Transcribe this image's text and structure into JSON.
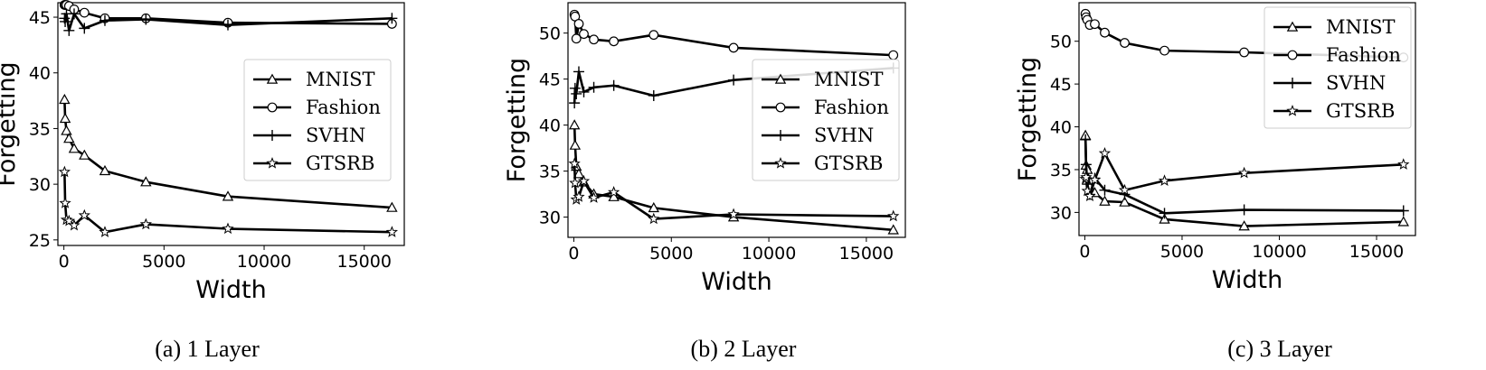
{
  "chart_data": [
    {
      "type": "line",
      "caption": "(a) 1 Layer",
      "xlabel": "Width",
      "ylabel": "Forgetting",
      "xlim": [
        -300,
        17000
      ],
      "ylim": [
        24.5,
        46.3
      ],
      "xticks": [
        0,
        5000,
        10000,
        15000
      ],
      "yticks": [
        25,
        30,
        35,
        40,
        45
      ],
      "legend_placement": "center-right",
      "series": [
        {
          "name": "MNIST",
          "marker": "triangle",
          "points": [
            [
              32,
              37.6
            ],
            [
              64,
              35.9
            ],
            [
              128,
              34.8
            ],
            [
              256,
              34.1
            ],
            [
              512,
              33.2
            ],
            [
              1024,
              32.6
            ],
            [
              2048,
              31.2
            ],
            [
              4096,
              30.2
            ],
            [
              8192,
              28.9
            ],
            [
              16384,
              27.9
            ]
          ]
        },
        {
          "name": "Fashion",
          "marker": "circle",
          "points": [
            [
              32,
              46.1
            ],
            [
              64,
              46.1
            ],
            [
              128,
              46.1
            ],
            [
              256,
              46.0
            ],
            [
              512,
              45.7
            ],
            [
              1024,
              45.4
            ],
            [
              2048,
              44.9
            ],
            [
              4096,
              44.9
            ],
            [
              8192,
              44.5
            ],
            [
              16384,
              44.4
            ]
          ]
        },
        {
          "name": "SVHN",
          "marker": "plus",
          "points": [
            [
              32,
              44.9
            ],
            [
              64,
              44.6
            ],
            [
              128,
              45.3
            ],
            [
              256,
              43.8
            ],
            [
              512,
              45.3
            ],
            [
              1024,
              44.0
            ],
            [
              2048,
              44.7
            ],
            [
              4096,
              44.8
            ],
            [
              8192,
              44.3
            ],
            [
              16384,
              44.9
            ]
          ]
        },
        {
          "name": "GTSRB",
          "marker": "star",
          "points": [
            [
              32,
              31.1
            ],
            [
              64,
              28.3
            ],
            [
              128,
              26.8
            ],
            [
              256,
              26.7
            ],
            [
              512,
              26.3
            ],
            [
              1024,
              27.2
            ],
            [
              2048,
              25.7
            ],
            [
              4096,
              26.4
            ],
            [
              8192,
              26.0
            ],
            [
              16384,
              25.7
            ]
          ]
        }
      ]
    },
    {
      "type": "line",
      "caption": "(b) 2 Layer",
      "xlabel": "Width",
      "ylabel": "Forgetting",
      "xlim": [
        -300,
        17000
      ],
      "ylim": [
        27.8,
        53.3
      ],
      "xticks": [
        0,
        5000,
        10000,
        15000
      ],
      "yticks": [
        30,
        35,
        40,
        45,
        50
      ],
      "legend_placement": "center-right",
      "series": [
        {
          "name": "MNIST",
          "marker": "triangle",
          "points": [
            [
              32,
              40.0
            ],
            [
              64,
              37.8
            ],
            [
              128,
              35.5
            ],
            [
              256,
              34.7
            ],
            [
              512,
              33.8
            ],
            [
              1024,
              32.5
            ],
            [
              2048,
              32.2
            ],
            [
              4096,
              31.0
            ],
            [
              8192,
              30.0
            ],
            [
              16384,
              28.6
            ]
          ]
        },
        {
          "name": "Fashion",
          "marker": "circle",
          "points": [
            [
              32,
              52.0
            ],
            [
              64,
              51.8
            ],
            [
              128,
              49.4
            ],
            [
              256,
              51.0
            ],
            [
              512,
              49.9
            ],
            [
              1024,
              49.3
            ],
            [
              2048,
              49.1
            ],
            [
              4096,
              49.8
            ],
            [
              8192,
              48.4
            ],
            [
              16384,
              47.6
            ]
          ]
        },
        {
          "name": "SVHN",
          "marker": "plus",
          "points": [
            [
              32,
              42.4
            ],
            [
              64,
              44.0
            ],
            [
              128,
              43.4
            ],
            [
              256,
              45.8
            ],
            [
              512,
              43.6
            ],
            [
              1024,
              44.1
            ],
            [
              2048,
              44.3
            ],
            [
              4096,
              43.2
            ],
            [
              8192,
              44.9
            ],
            [
              16384,
              46.2
            ]
          ]
        },
        {
          "name": "GTSRB",
          "marker": "star",
          "points": [
            [
              32,
              35.8
            ],
            [
              64,
              33.7
            ],
            [
              128,
              31.9
            ],
            [
              256,
              32.2
            ],
            [
              512,
              33.9
            ],
            [
              1024,
              32.1
            ],
            [
              2048,
              32.7
            ],
            [
              4096,
              29.8
            ],
            [
              8192,
              30.3
            ],
            [
              16384,
              30.1
            ]
          ]
        }
      ]
    },
    {
      "type": "line",
      "caption": "(c) 3 Layer",
      "xlabel": "Width",
      "ylabel": "Forgetting",
      "xlim": [
        -300,
        17000
      ],
      "ylim": [
        27.3,
        54.5
      ],
      "xticks": [
        0,
        5000,
        10000,
        15000
      ],
      "yticks": [
        30,
        35,
        40,
        45,
        50
      ],
      "legend_placement": "top-right",
      "series": [
        {
          "name": "MNIST",
          "marker": "triangle",
          "points": [
            [
              32,
              39.0
            ],
            [
              64,
              35.5
            ],
            [
              128,
              35.0
            ],
            [
              256,
              33.0
            ],
            [
              512,
              32.3
            ],
            [
              1024,
              31.3
            ],
            [
              2048,
              31.2
            ],
            [
              4096,
              29.2
            ],
            [
              8192,
              28.4
            ],
            [
              16384,
              28.9
            ]
          ]
        },
        {
          "name": "Fashion",
          "marker": "circle",
          "points": [
            [
              32,
              53.2
            ],
            [
              64,
              52.8
            ],
            [
              128,
              52.5
            ],
            [
              256,
              51.9
            ],
            [
              512,
              52.0
            ],
            [
              1024,
              51.0
            ],
            [
              2048,
              49.8
            ],
            [
              4096,
              48.9
            ],
            [
              8192,
              48.7
            ],
            [
              16384,
              48.1
            ]
          ]
        },
        {
          "name": "SVHN",
          "marker": "plus",
          "points": [
            [
              32,
              38.5
            ],
            [
              64,
              35.6
            ],
            [
              128,
              33.3
            ],
            [
              256,
              32.1
            ],
            [
              512,
              34.0
            ],
            [
              1024,
              32.6
            ],
            [
              2048,
              32.1
            ],
            [
              4096,
              29.9
            ],
            [
              8192,
              30.3
            ],
            [
              16384,
              30.2
            ]
          ]
        },
        {
          "name": "GTSRB",
          "marker": "star",
          "points": [
            [
              32,
              33.9
            ],
            [
              64,
              34.1
            ],
            [
              128,
              32.5
            ],
            [
              256,
              31.9
            ],
            [
              512,
              33.8
            ],
            [
              1024,
              36.9
            ],
            [
              2048,
              32.6
            ],
            [
              4096,
              33.7
            ],
            [
              8192,
              34.6
            ],
            [
              16384,
              35.6
            ]
          ]
        }
      ]
    }
  ]
}
